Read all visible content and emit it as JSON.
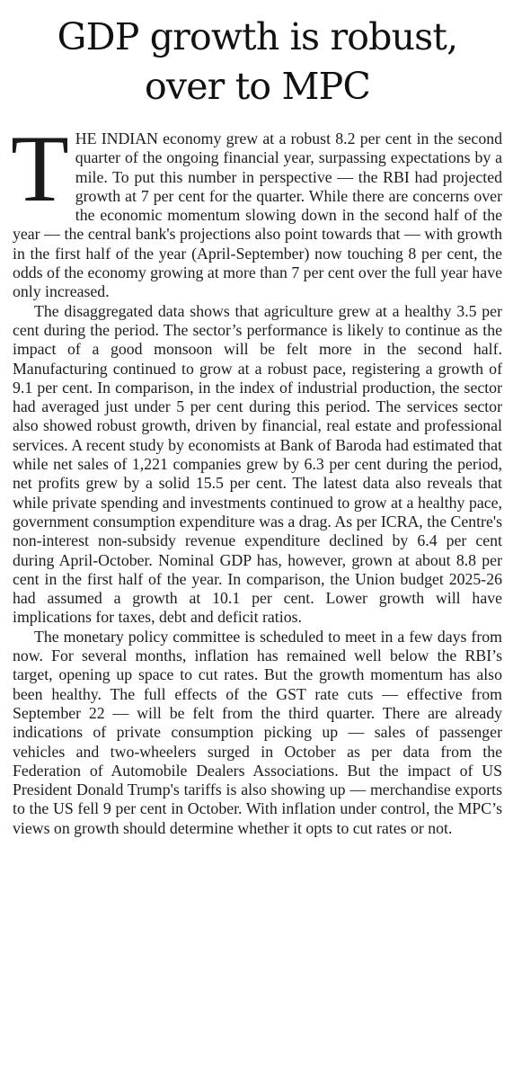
{
  "headline": {
    "line1": "GDP growth is robust,",
    "line2": "over to MPC"
  },
  "article": {
    "dropcap": "T",
    "p1": "HE INDIAN economy grew at a robust 8.2 per cent in the second quarter of the ongoing financial year, surpassing expectations by a mile. To put this number in perspective — the RBI had projected growth at 7 per cent for the quarter. While there are concerns over the economic momentum slowing down in the second half of the year — the central bank's projections also point towards that — with growth in the first half of the year (April-September) now touching 8 per cent, the odds of the economy growing at more than 7 per cent over the full year have only increased.",
    "p2": "The disaggregated data shows that agriculture grew at a healthy 3.5 per cent during the period. The sector’s performance is likely to continue as the impact of a good monsoon will be felt more in the second half. Manufacturing continued to grow at a robust pace, registering a growth of 9.1 per cent. In comparison, in the index of industrial production, the sector had averaged just under 5 per cent during this period. The services sector also showed robust growth, driven by financial, real estate and professional services. A recent study by economists at Bank of Baroda had estimated that while net sales of 1,221 companies grew by 6.3 per cent during the period, net profits grew by a solid 15.5 per cent. The latest data also reveals that while private spending and investments continued to grow at a healthy pace, government consumption expenditure was a drag. As per ICRA, the Centre's non-interest non-subsidy revenue expenditure declined by 6.4 per cent during April-October. Nominal GDP has, however, grown at about 8.8 per cent in the first half of the year. In comparison, the Union budget 2025-26 had assumed a growth at 10.1 per cent. Lower growth will have implications for taxes, debt and deficit ratios.",
    "p3": "The monetary policy committee is scheduled to meet in a few days from now. For several months, inflation has remained well below the RBI’s target, opening up space to cut rates. But the growth momentum has also been healthy. The full effects of the GST rate cuts — effective from September 22 — will be felt from the third quarter. There are already indications of private consumption picking up — sales of passenger vehicles and two-wheelers surged in October as per data from the Federation of Automobile Dealers Associations. But the impact of US President Donald Trump's tariffs is also showing up — merchandise exports to the US fell 9 per cent in October. With inflation under control, the MPC’s views on growth should determine whether it opts to cut rates or not."
  }
}
